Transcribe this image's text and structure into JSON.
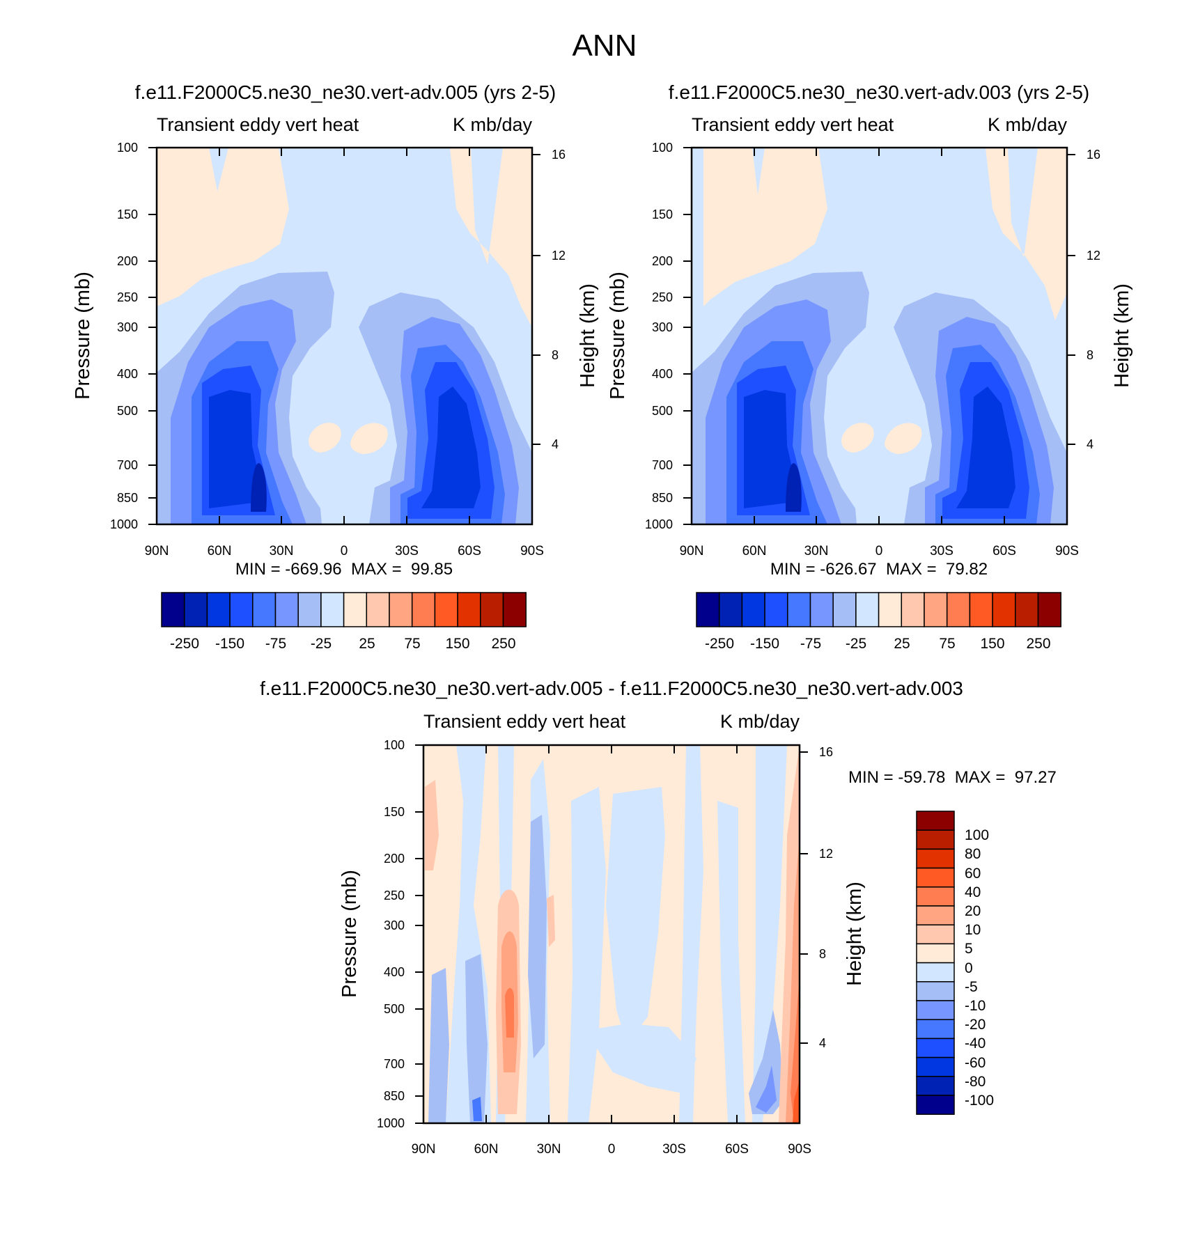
{
  "page": {
    "title": "ANN"
  },
  "colors": {
    "main_levels": [
      "#00008c",
      "#0022b4",
      "#0037e0",
      "#1e50ff",
      "#4678ff",
      "#7896ff",
      "#a5bef5",
      "#d2e6ff",
      "#ffebd7",
      "#ffc8af",
      "#ffa582",
      "#ff7d50",
      "#ff5a23",
      "#e13200",
      "#b91e00",
      "#8c0000"
    ],
    "diff_levels": [
      "#00008c",
      "#0022b4",
      "#0037e0",
      "#1e50ff",
      "#4678ff",
      "#7896ff",
      "#a5bef5",
      "#d2e6ff",
      "#ffebd7",
      "#ffc8af",
      "#ffa582",
      "#ff7d50",
      "#ff5a23",
      "#e13200",
      "#b91e00",
      "#8c0000"
    ]
  },
  "chart_data": [
    {
      "type": "heatmap",
      "title": "f.e11.F2000C5.ne30_ne30.vert-adv.005 (yrs 2-5)",
      "left_string": "Transient eddy vert heat",
      "right_string": "K mb/day",
      "ylabel": "Pressure (mb)",
      "ylabel_right": "Height (km)",
      "x_ticks": [
        "90N",
        "60N",
        "30N",
        "0",
        "30S",
        "60S",
        "90S"
      ],
      "y_ticks": [
        "100",
        "150",
        "200",
        "250",
        "300",
        "400",
        "500",
        "700",
        "850",
        "1000"
      ],
      "y_ticks_right": [
        "16",
        "12",
        "8",
        "4"
      ],
      "stats": "MIN = -669.96  MAX =  99.85",
      "colorbar_labels": [
        "-250",
        "-150",
        "-75",
        "-25",
        "25",
        "75",
        "150",
        "250"
      ]
    },
    {
      "type": "heatmap",
      "title": "f.e11.F2000C5.ne30_ne30.vert-adv.003 (yrs 2-5)",
      "left_string": "Transient eddy vert heat",
      "right_string": "K mb/day",
      "ylabel": "Pressure (mb)",
      "ylabel_right": "Height (km)",
      "x_ticks": [
        "90N",
        "60N",
        "30N",
        "0",
        "30S",
        "60S",
        "90S"
      ],
      "y_ticks": [
        "100",
        "150",
        "200",
        "250",
        "300",
        "400",
        "500",
        "700",
        "850",
        "1000"
      ],
      "y_ticks_right": [
        "16",
        "12",
        "8",
        "4"
      ],
      "stats": "MIN = -626.67  MAX =  79.82",
      "colorbar_labels": [
        "-250",
        "-150",
        "-75",
        "-25",
        "25",
        "75",
        "150",
        "250"
      ]
    },
    {
      "type": "heatmap",
      "title": "f.e11.F2000C5.ne30_ne30.vert-adv.005 - f.e11.F2000C5.ne30_ne30.vert-adv.003",
      "left_string": "Transient eddy vert heat",
      "right_string": "K mb/day",
      "ylabel": "Pressure (mb)",
      "ylabel_right": "Height (km)",
      "x_ticks": [
        "90N",
        "60N",
        "30N",
        "0",
        "30S",
        "60S",
        "90S"
      ],
      "y_ticks": [
        "100",
        "150",
        "200",
        "250",
        "300",
        "400",
        "500",
        "700",
        "850",
        "1000"
      ],
      "y_ticks_right": [
        "16",
        "12",
        "8",
        "4"
      ],
      "stats": "MIN = -59.78  MAX =  97.27",
      "colorbar_labels": [
        "100",
        "80",
        "60",
        "40",
        "20",
        "10",
        "5",
        "0",
        "-5",
        "-10",
        "-20",
        "-40",
        "-60",
        "-80",
        "-100"
      ]
    }
  ]
}
